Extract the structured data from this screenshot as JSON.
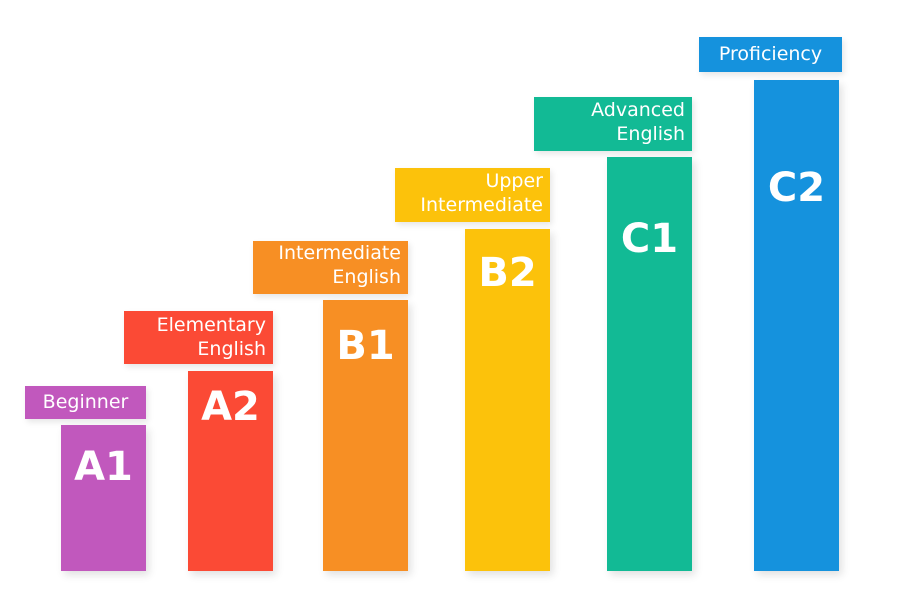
{
  "levels": [
    {
      "code": "A1",
      "label_lines": [
        "Beginner"
      ],
      "color": "#C158BD"
    },
    {
      "code": "A2",
      "label_lines": [
        "Elementary",
        "English"
      ],
      "color": "#FB4A35"
    },
    {
      "code": "B1",
      "label_lines": [
        "Intermediate",
        "English"
      ],
      "color": "#F78F24"
    },
    {
      "code": "B2",
      "label_lines": [
        "Upper",
        "Intermediate"
      ],
      "color": "#FCC20B"
    },
    {
      "code": "C1",
      "label_lines": [
        "Advanced",
        "English"
      ],
      "color": "#12BA95"
    },
    {
      "code": "C2",
      "label_lines": [
        "Proficiency"
      ],
      "color": "#1592DD"
    }
  ]
}
